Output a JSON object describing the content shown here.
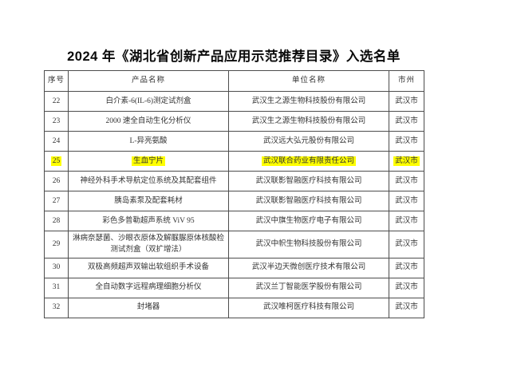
{
  "page": {
    "title": "2024 年《湖北省创新产品应用示范推荐目录》入选名单"
  },
  "table": {
    "highlight_color": "#ffff00",
    "headers": [
      "序号",
      "产品名称",
      "单位名称",
      "市州"
    ],
    "rows": [
      {
        "no": "22",
        "product": "白介素-6(IL-6)测定试剂盒",
        "company": "武汉生之源生物科技股份有限公司",
        "city": "武汉市",
        "highlighted": false
      },
      {
        "no": "23",
        "product": "2000 速全自动生化分析仪",
        "company": "武汉生之源生物科技股份有限公司",
        "city": "武汉市",
        "highlighted": false
      },
      {
        "no": "24",
        "product": "L-异亮氨酸",
        "company": "武汉远大弘元股份有限公司",
        "city": "武汉市",
        "highlighted": false
      },
      {
        "no": "25",
        "product": "生血宁片",
        "company": "武汉联合药业有限责任公司",
        "city": "武汉市",
        "highlighted": true
      },
      {
        "no": "26",
        "product": "神经外科手术导航定位系统及其配套组件",
        "company": "武汉联影智融医疗科技有限公司",
        "city": "武汉市",
        "highlighted": false
      },
      {
        "no": "27",
        "product": "胰岛素泵及配套耗材",
        "company": "武汉联影智融医疗科技有限公司",
        "city": "武汉市",
        "highlighted": false
      },
      {
        "no": "28",
        "product": "彩色多普勒超声系统 ViV 95",
        "company": "武汉中旗生物医疗电子有限公司",
        "city": "武汉市",
        "highlighted": false
      },
      {
        "no": "29",
        "product": "淋病奈瑟菌、沙眼衣原体及解脲脲原体核酸检测试剂盒（双扩增法）",
        "company": "武汉中帜生物科技股份有限公司",
        "city": "武汉市",
        "highlighted": false
      },
      {
        "no": "30",
        "product": "双极高频超声双输出软组织手术设备",
        "company": "武汉半边天微创医疗技术有限公司",
        "city": "武汉市",
        "highlighted": false
      },
      {
        "no": "31",
        "product": "全自动数字远程病理细胞分析仪",
        "company": "武汉兰丁智能医学股份有限公司",
        "city": "武汉市",
        "highlighted": false
      },
      {
        "no": "32",
        "product": "封堵器",
        "company": "武汉唯柯医疗科技有限公司",
        "city": "武汉市",
        "highlighted": false
      }
    ]
  }
}
